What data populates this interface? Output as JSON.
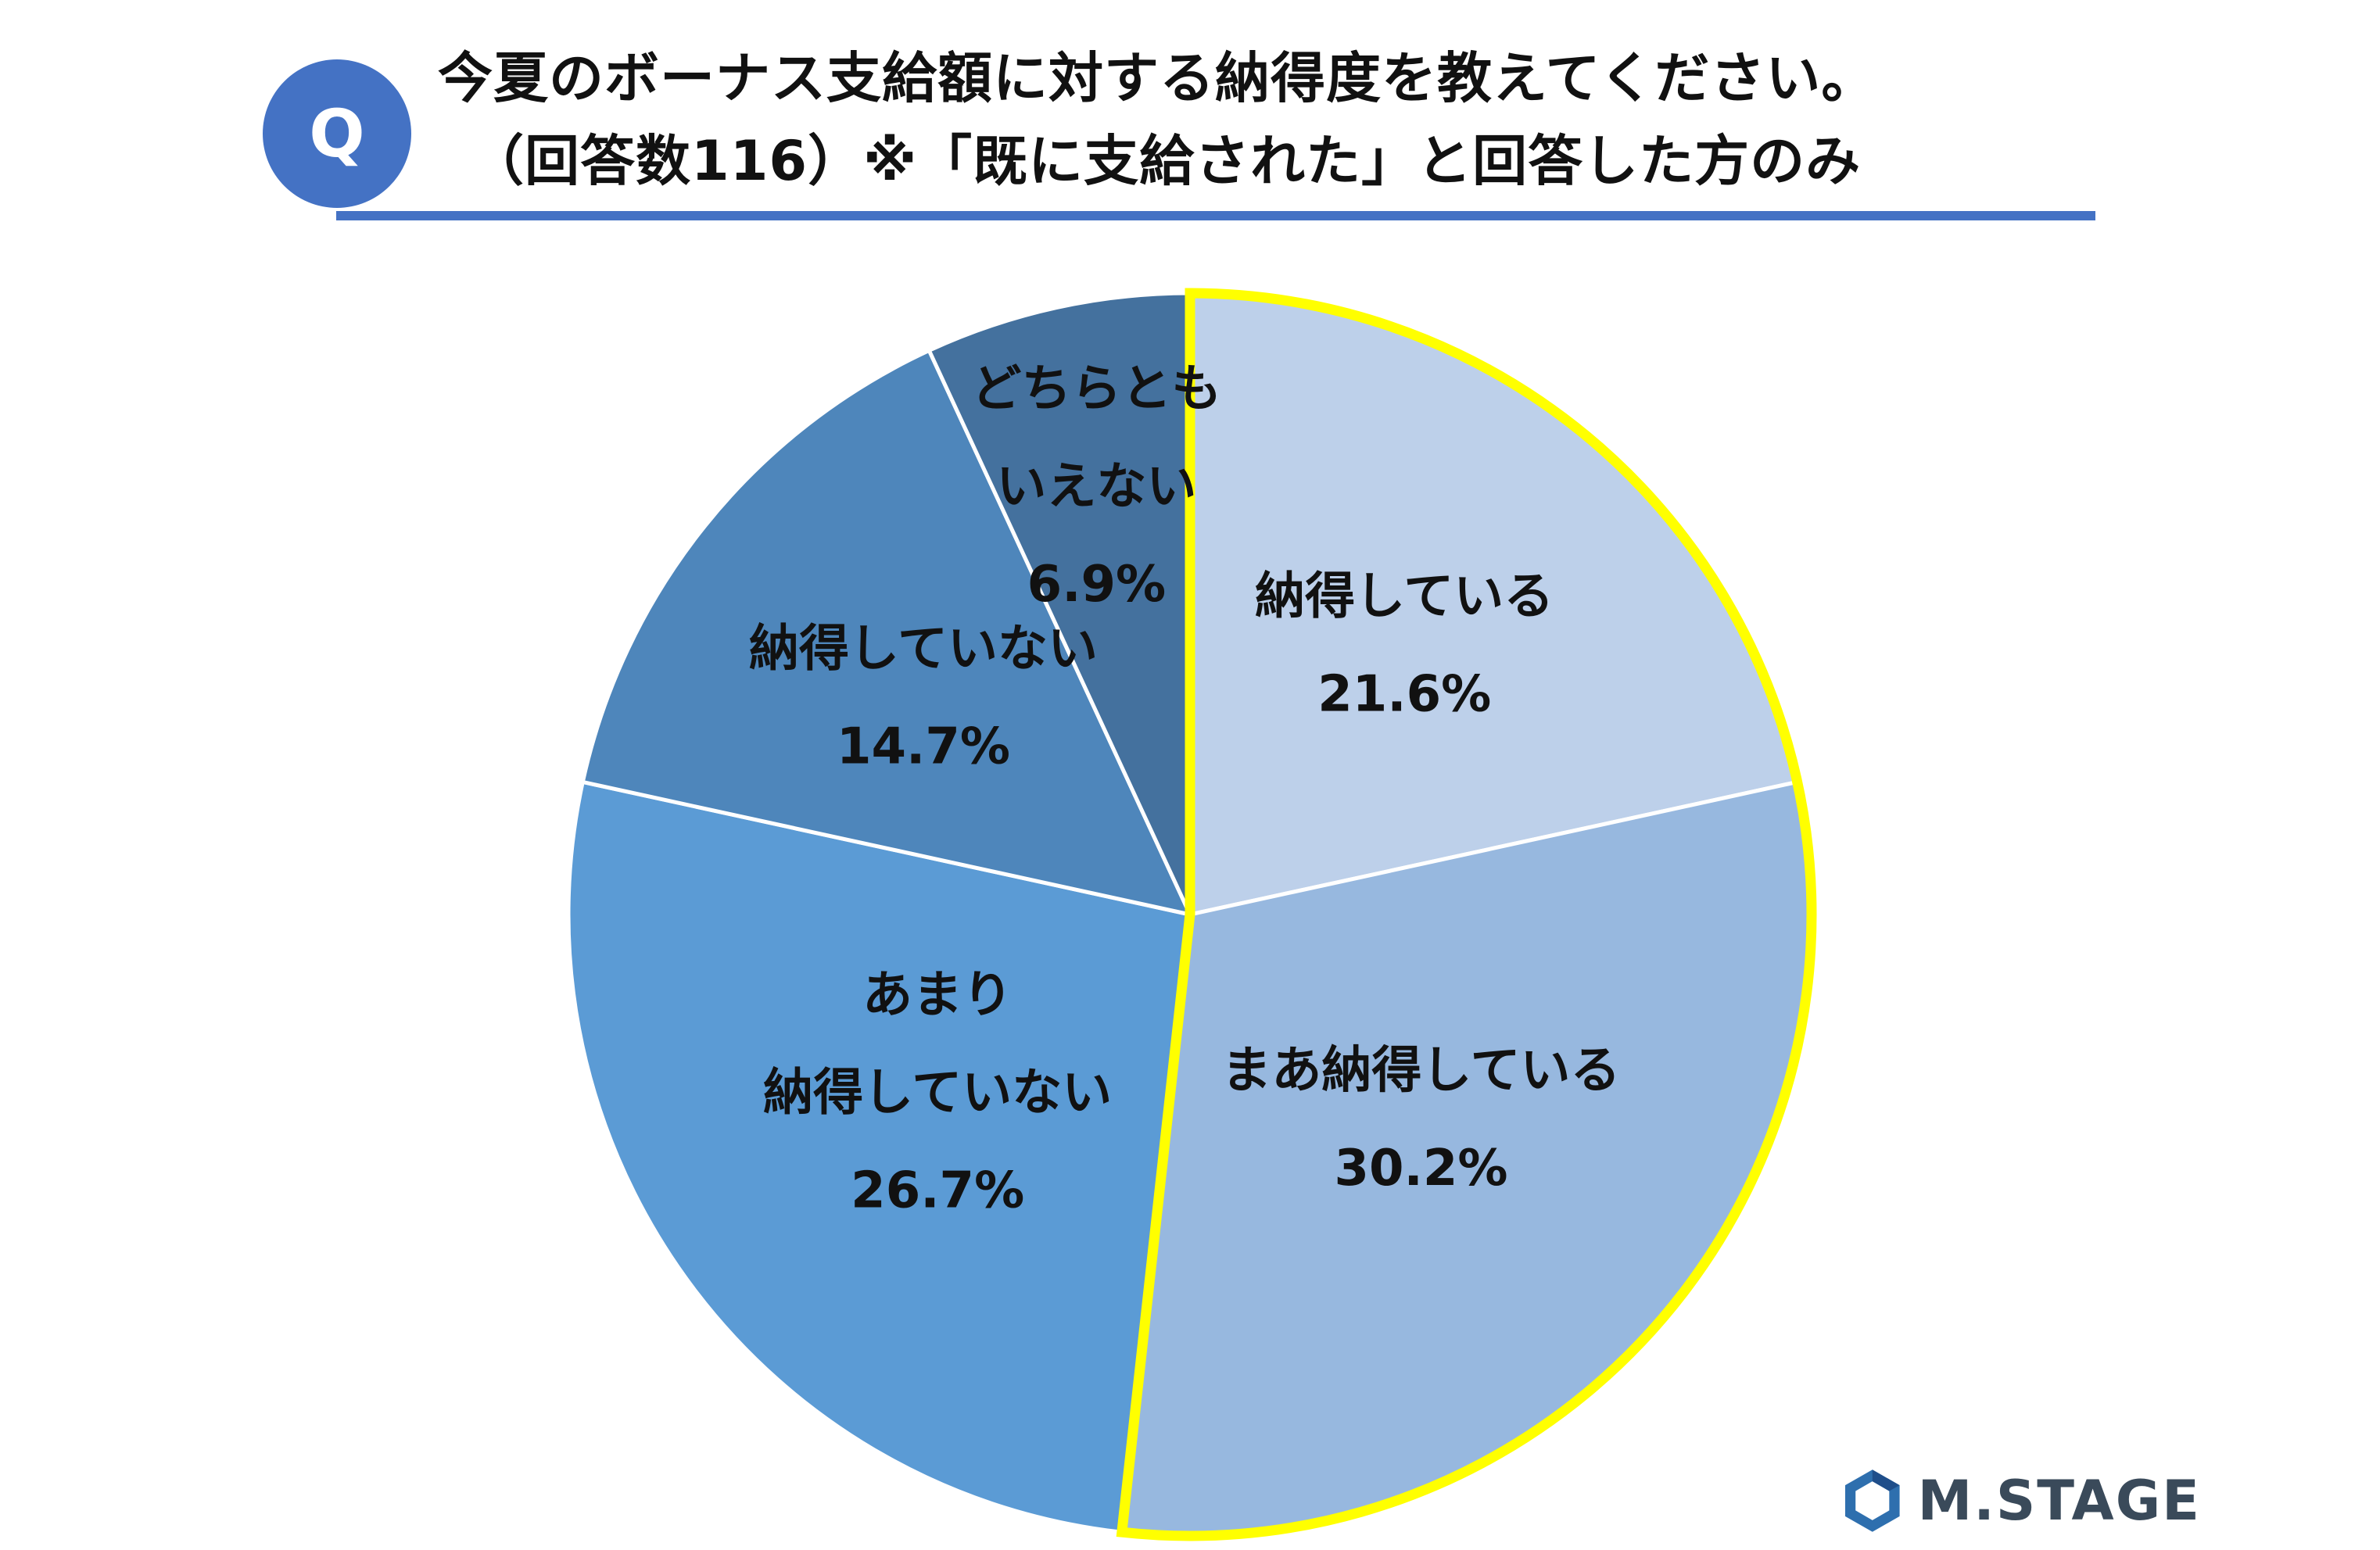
{
  "header": {
    "badge": "Q",
    "title_line1": "今夏のボーナス支給額に対する納得度を教えてください。",
    "title_line2": "（回答数116）※「既に支給された」と回答した方のみ"
  },
  "logo": {
    "text": "M.STAGE"
  },
  "chart_data": {
    "type": "pie",
    "start": "12 o'clock, clockwise",
    "slices": [
      {
        "label_lines": [
          "納得している"
        ],
        "value": 21.6,
        "value_text": "21.6%",
        "color": "#BDD0EA",
        "highlight": true
      },
      {
        "label_lines": [
          "まあ納得している"
        ],
        "value": 30.2,
        "value_text": "30.2%",
        "color": "#97B8DF",
        "highlight": true
      },
      {
        "label_lines": [
          "あまり",
          "納得していない"
        ],
        "value": 26.7,
        "value_text": "26.7%",
        "color": "#5B9BD5",
        "highlight": false
      },
      {
        "label_lines": [
          "納得していない"
        ],
        "value": 14.7,
        "value_text": "14.7%",
        "color": "#4E86BB",
        "highlight": false
      },
      {
        "label_lines": [
          "どちらとも",
          "いえない"
        ],
        "value": 6.9,
        "value_text": "6.9%",
        "color": "#44719E",
        "highlight": false
      }
    ],
    "highlight_color": "#FFFF00"
  }
}
